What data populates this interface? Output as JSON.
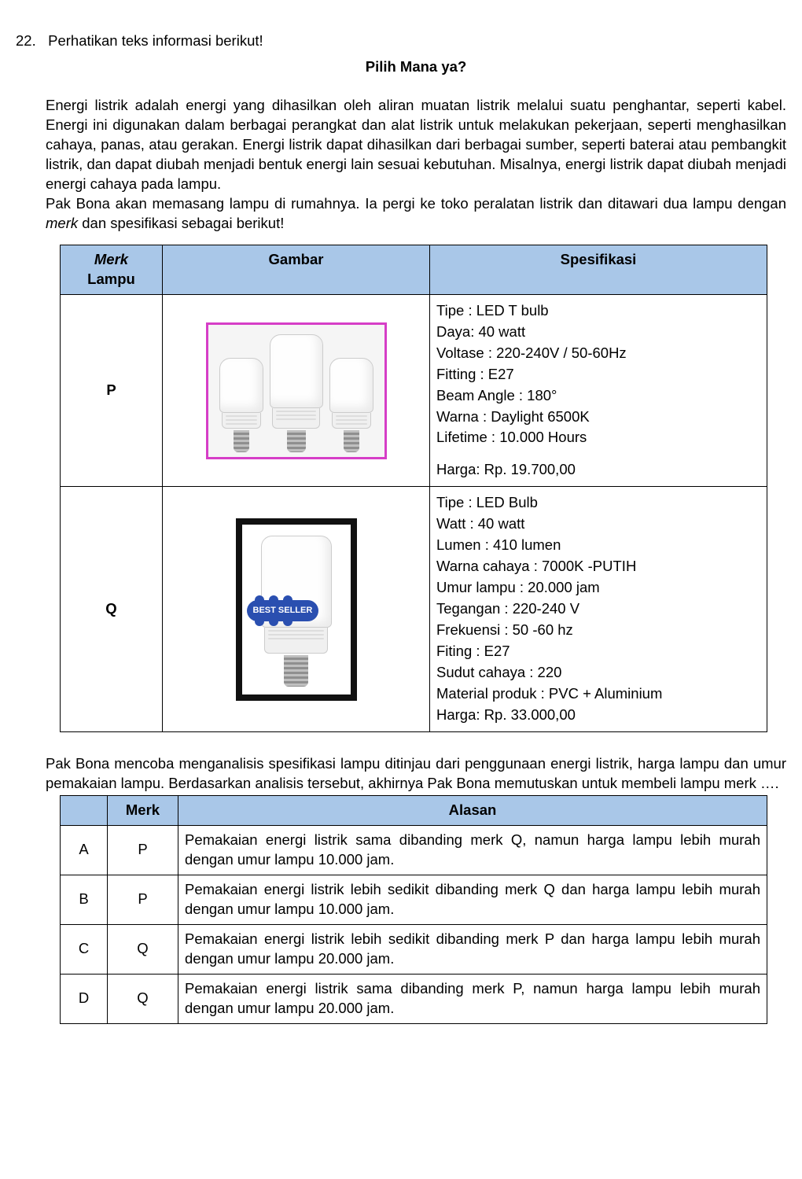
{
  "question_number": "22.",
  "question_instruction": "Perhatikan teks informasi berikut!",
  "title": "Pilih Mana ya?",
  "para1": "Energi listrik adalah energi yang dihasilkan oleh aliran muatan listrik melalui suatu penghantar, seperti kabel. Energi ini digunakan dalam berbagai perangkat dan alat listrik untuk melakukan pekerjaan, seperti menghasilkan cahaya, panas, atau gerakan. Energi listrik dapat dihasilkan dari berbagai sumber, seperti baterai atau pembangkit listrik, dan dapat diubah menjadi bentuk energi lain sesuai kebutuhan. Misalnya, energi listrik dapat diubah menjadi  energi cahaya pada lampu.",
  "para2_a": "Pak Bona akan memasang lampu di rumahnya. Ia pergi ke toko peralatan listrik dan ditawari dua lampu dengan ",
  "para2_italic": "merk",
  "para2_b": " dan spesifikasi sebagai berikut!",
  "spec_table": {
    "headers": {
      "merk_it": "Merk",
      "merk_rest": "Lampu",
      "gambar": "Gambar",
      "spes": "Spesifikasi"
    },
    "rows": [
      {
        "merk": "P",
        "badge": "",
        "specs": [
          "Tipe : LED T bulb",
          "Daya: 40 watt",
          "Voltase : 220-240V / 50-60Hz",
          "Fitting : E27",
          "Beam Angle : 180°",
          "Warna : Daylight 6500K",
          "Lifetime : 10.000 Hours"
        ],
        "extra": "Harga: Rp. 19.700,00"
      },
      {
        "merk": "Q",
        "badge": "BEST SELLER",
        "specs": [
          "Tipe : LED Bulb",
          "Watt : 40 watt",
          "Lumen : 410 lumen",
          "Warna cahaya : 7000K -PUTIH",
          "Umur lampu : 20.000 jam",
          "Tegangan : 220-240 V",
          "Frekuensi : 50 -60 hz",
          "Fiting : E27",
          "Sudut cahaya : 220",
          "Material produk : PVC + Aluminium",
          "Harga: Rp. 33.000,00"
        ],
        "extra": ""
      }
    ]
  },
  "after_para": "Pak Bona mencoba menganalisis spesifikasi lampu ditinjau dari penggunaan energi listrik, harga lampu dan umur pemakaian lampu. Berdasarkan analisis tersebut, akhirnya Pak Bona memutuskan untuk membeli lampu merk ….",
  "ans_table": {
    "headers": {
      "blank": "",
      "merk": "Merk",
      "alasan": "Alasan"
    },
    "rows": [
      {
        "letter": "A",
        "merk": "P",
        "alasan": "Pemakaian energi listrik sama dibanding merk Q, namun harga lampu lebih murah dengan umur lampu 10.000 jam."
      },
      {
        "letter": "B",
        "merk": "P",
        "alasan": "Pemakaian energi listrik lebih sedikit dibanding merk Q dan harga lampu lebih murah dengan umur lampu 10.000 jam."
      },
      {
        "letter": "C",
        "merk": "Q",
        "alasan": "Pemakaian energi listrik lebih sedikit dibanding merk P dan harga lampu lebih murah dengan umur lampu 20.000 jam."
      },
      {
        "letter": "D",
        "merk": "Q",
        "alasan": "Pemakaian energi listrik sama dibanding merk P, namun harga lampu lebih murah dengan umur lampu 20.000 jam."
      }
    ]
  },
  "colors": {
    "header_bg": "#a9c7e8",
    "frame_pink": "#d63ec7",
    "frame_black": "#111111",
    "badge_bg": "#2a4fb0"
  }
}
